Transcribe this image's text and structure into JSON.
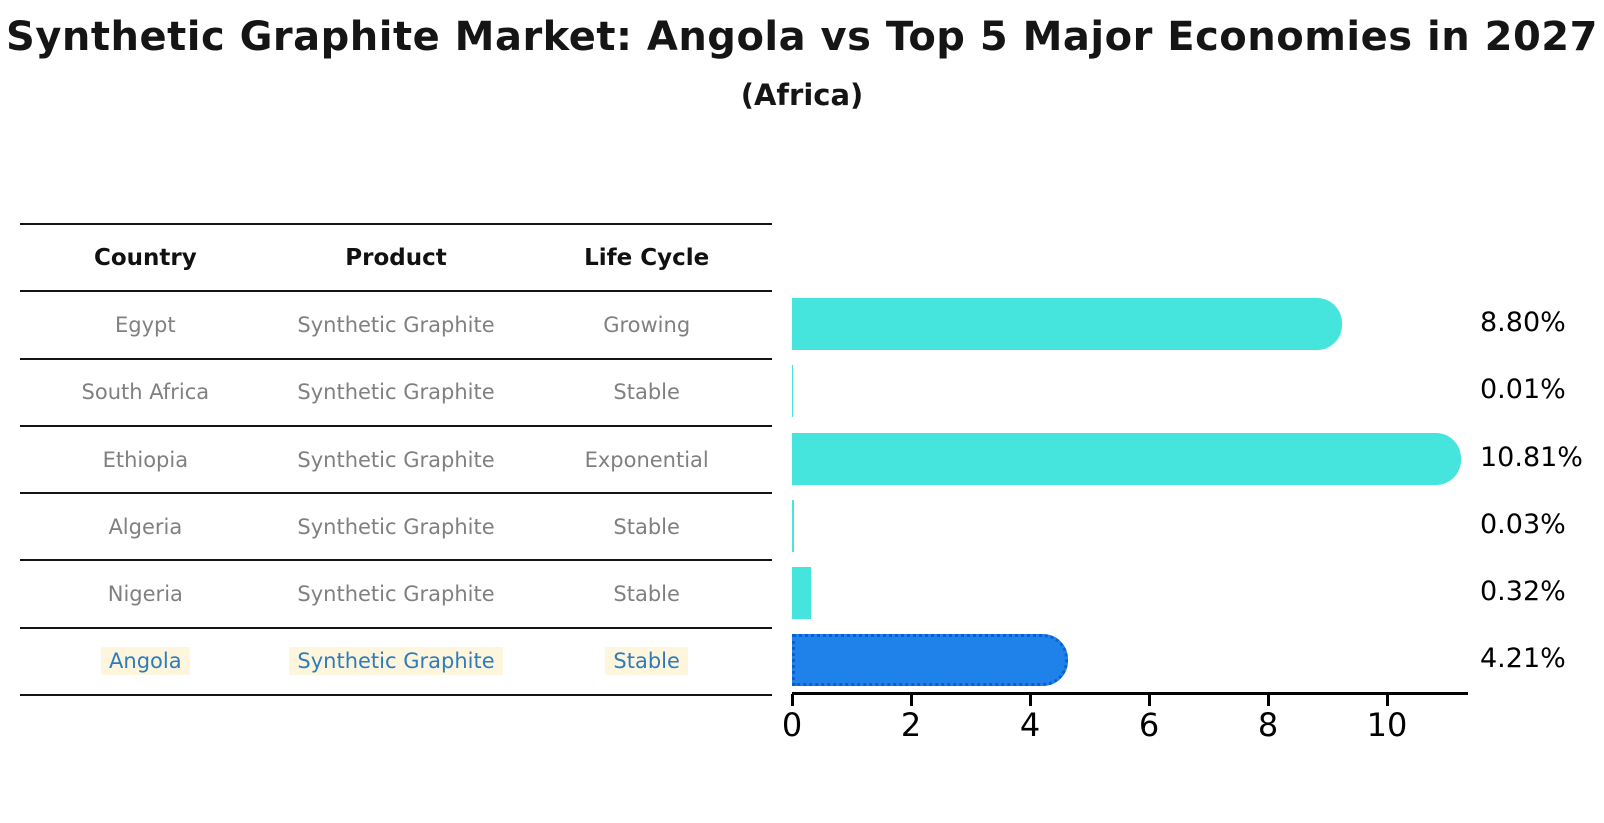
{
  "title": "Synthetic Graphite Market: Angola vs Top 5 Major Economies in 2027",
  "subtitle": "(Africa)",
  "table": {
    "headers": [
      "Country",
      "Product",
      "Life Cycle"
    ],
    "rows": [
      {
        "country": "Egypt",
        "product": "Synthetic Graphite",
        "life_cycle": "Growing",
        "highlight": false
      },
      {
        "country": "South Africa",
        "product": "Synthetic Graphite",
        "life_cycle": "Stable",
        "highlight": false
      },
      {
        "country": "Ethiopia",
        "product": "Synthetic Graphite",
        "life_cycle": "Exponential",
        "highlight": false
      },
      {
        "country": "Algeria",
        "product": "Synthetic Graphite",
        "life_cycle": "Stable",
        "highlight": false
      },
      {
        "country": "Nigeria",
        "product": "Synthetic Graphite",
        "life_cycle": "Stable",
        "highlight": false
      },
      {
        "country": "Angola",
        "product": "Synthetic Graphite",
        "life_cycle": "Stable",
        "highlight": true
      }
    ]
  },
  "chart_data": {
    "type": "bar",
    "orientation": "horizontal",
    "title": "Synthetic Graphite Market: Angola vs Top 5 Major Economies in 2027 (Africa)",
    "categories": [
      "Egypt",
      "South Africa",
      "Ethiopia",
      "Algeria",
      "Nigeria",
      "Angola"
    ],
    "values": [
      8.8,
      0.01,
      10.81,
      0.03,
      0.32,
      4.21
    ],
    "value_labels": [
      "8.80%",
      "0.01%",
      "10.81%",
      "0.03%",
      "0.32%",
      "4.21%"
    ],
    "unit": "percent",
    "xticks": [
      "0",
      "2",
      "4",
      "6",
      "8",
      "10"
    ],
    "xlim": [
      0,
      11.3
    ],
    "grid": false,
    "legend": false,
    "highlight_category": "Angola"
  },
  "colors": {
    "bar_default": "#45e4dc",
    "bar_highlight": "#1e82ea",
    "bar_highlight_border": "#0d5fd0",
    "highlight_text": "#2e7cbe",
    "highlight_text_bg": "#fdf6dd",
    "row_text": "#808080",
    "header_text": "#111111",
    "axis_text": "#000000"
  }
}
